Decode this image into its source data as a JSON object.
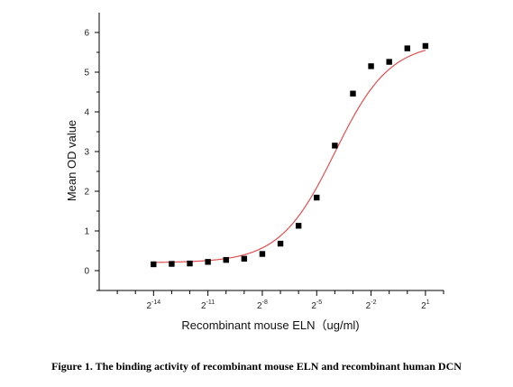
{
  "chart_data": {
    "type": "scatter",
    "xlabel": "Recombinant mouse ELN（ug/ml)",
    "ylabel": "Mean OD value",
    "x_scale": "log2",
    "x_ticks": [
      {
        "base": "2",
        "exp": "-14",
        "value": 6.103515625e-05
      },
      {
        "base": "2",
        "exp": "-11",
        "value": 0.00048828125
      },
      {
        "base": "2",
        "exp": "-8",
        "value": 0.00390625
      },
      {
        "base": "2",
        "exp": "-5",
        "value": 0.03125
      },
      {
        "base": "2",
        "exp": "-2",
        "value": 0.25
      },
      {
        "base": "2",
        "exp": "1",
        "value": 2
      }
    ],
    "y_ticks": [
      "0",
      "1",
      "2",
      "3",
      "4",
      "5",
      "6"
    ],
    "xlim": [
      7.6294e-06,
      4
    ],
    "ylim": [
      -0.5,
      6.5
    ],
    "grid": false,
    "legend": "none",
    "point_color": "#000000",
    "fit_color": "#e05050",
    "series": [
      {
        "points": [
          {
            "x": 6.103515625e-05,
            "y": 0.16
          },
          {
            "x": 0.0001220703125,
            "y": 0.17
          },
          {
            "x": 0.000244140625,
            "y": 0.18
          },
          {
            "x": 0.00048828125,
            "y": 0.22
          },
          {
            "x": 0.0009765625,
            "y": 0.27
          },
          {
            "x": 0.001953125,
            "y": 0.3
          },
          {
            "x": 0.00390625,
            "y": 0.42
          },
          {
            "x": 0.0078125,
            "y": 0.68
          },
          {
            "x": 0.015625,
            "y": 1.13
          },
          {
            "x": 0.03125,
            "y": 1.84
          },
          {
            "x": 0.0625,
            "y": 3.15
          },
          {
            "x": 0.125,
            "y": 4.46
          },
          {
            "x": 0.25,
            "y": 5.15
          },
          {
            "x": 0.5,
            "y": 5.26
          },
          {
            "x": 1,
            "y": 5.6
          },
          {
            "x": 2,
            "y": 5.66
          }
        ],
        "fit": {
          "bottom": 0.2,
          "top": 5.75,
          "ec50_log2": -4.0,
          "hill_slope_log2": 0.95
        }
      }
    ]
  },
  "figure": {
    "caption": "Figure 1. The binding activity of recombinant mouse ELN and recombinant human DCN"
  }
}
